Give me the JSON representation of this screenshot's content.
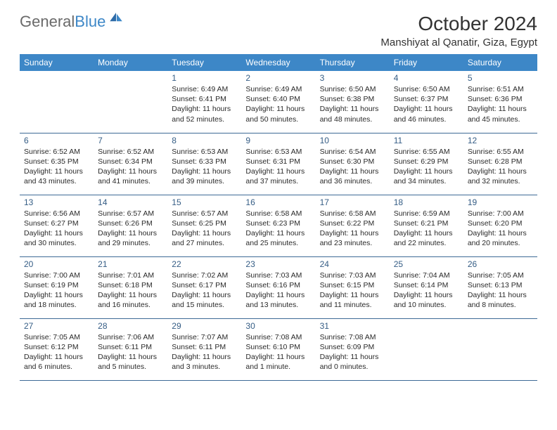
{
  "header": {
    "logo_general": "General",
    "logo_blue": "Blue",
    "title": "October 2024",
    "location": "Manshiyat al Qanatir, Giza, Egypt"
  },
  "colors": {
    "header_bg": "#3d87c7",
    "header_text": "#ffffff",
    "daynum": "#355d85",
    "row_border": "#3d6a96",
    "body_text": "#2a2a2a"
  },
  "day_names": [
    "Sunday",
    "Monday",
    "Tuesday",
    "Wednesday",
    "Thursday",
    "Friday",
    "Saturday"
  ],
  "weeks": [
    [
      null,
      null,
      {
        "n": "1",
        "sr": "Sunrise: 6:49 AM",
        "ss": "Sunset: 6:41 PM",
        "d1": "Daylight: 11 hours",
        "d2": "and 52 minutes."
      },
      {
        "n": "2",
        "sr": "Sunrise: 6:49 AM",
        "ss": "Sunset: 6:40 PM",
        "d1": "Daylight: 11 hours",
        "d2": "and 50 minutes."
      },
      {
        "n": "3",
        "sr": "Sunrise: 6:50 AM",
        "ss": "Sunset: 6:38 PM",
        "d1": "Daylight: 11 hours",
        "d2": "and 48 minutes."
      },
      {
        "n": "4",
        "sr": "Sunrise: 6:50 AM",
        "ss": "Sunset: 6:37 PM",
        "d1": "Daylight: 11 hours",
        "d2": "and 46 minutes."
      },
      {
        "n": "5",
        "sr": "Sunrise: 6:51 AM",
        "ss": "Sunset: 6:36 PM",
        "d1": "Daylight: 11 hours",
        "d2": "and 45 minutes."
      }
    ],
    [
      {
        "n": "6",
        "sr": "Sunrise: 6:52 AM",
        "ss": "Sunset: 6:35 PM",
        "d1": "Daylight: 11 hours",
        "d2": "and 43 minutes."
      },
      {
        "n": "7",
        "sr": "Sunrise: 6:52 AM",
        "ss": "Sunset: 6:34 PM",
        "d1": "Daylight: 11 hours",
        "d2": "and 41 minutes."
      },
      {
        "n": "8",
        "sr": "Sunrise: 6:53 AM",
        "ss": "Sunset: 6:33 PM",
        "d1": "Daylight: 11 hours",
        "d2": "and 39 minutes."
      },
      {
        "n": "9",
        "sr": "Sunrise: 6:53 AM",
        "ss": "Sunset: 6:31 PM",
        "d1": "Daylight: 11 hours",
        "d2": "and 37 minutes."
      },
      {
        "n": "10",
        "sr": "Sunrise: 6:54 AM",
        "ss": "Sunset: 6:30 PM",
        "d1": "Daylight: 11 hours",
        "d2": "and 36 minutes."
      },
      {
        "n": "11",
        "sr": "Sunrise: 6:55 AM",
        "ss": "Sunset: 6:29 PM",
        "d1": "Daylight: 11 hours",
        "d2": "and 34 minutes."
      },
      {
        "n": "12",
        "sr": "Sunrise: 6:55 AM",
        "ss": "Sunset: 6:28 PM",
        "d1": "Daylight: 11 hours",
        "d2": "and 32 minutes."
      }
    ],
    [
      {
        "n": "13",
        "sr": "Sunrise: 6:56 AM",
        "ss": "Sunset: 6:27 PM",
        "d1": "Daylight: 11 hours",
        "d2": "and 30 minutes."
      },
      {
        "n": "14",
        "sr": "Sunrise: 6:57 AM",
        "ss": "Sunset: 6:26 PM",
        "d1": "Daylight: 11 hours",
        "d2": "and 29 minutes."
      },
      {
        "n": "15",
        "sr": "Sunrise: 6:57 AM",
        "ss": "Sunset: 6:25 PM",
        "d1": "Daylight: 11 hours",
        "d2": "and 27 minutes."
      },
      {
        "n": "16",
        "sr": "Sunrise: 6:58 AM",
        "ss": "Sunset: 6:23 PM",
        "d1": "Daylight: 11 hours",
        "d2": "and 25 minutes."
      },
      {
        "n": "17",
        "sr": "Sunrise: 6:58 AM",
        "ss": "Sunset: 6:22 PM",
        "d1": "Daylight: 11 hours",
        "d2": "and 23 minutes."
      },
      {
        "n": "18",
        "sr": "Sunrise: 6:59 AM",
        "ss": "Sunset: 6:21 PM",
        "d1": "Daylight: 11 hours",
        "d2": "and 22 minutes."
      },
      {
        "n": "19",
        "sr": "Sunrise: 7:00 AM",
        "ss": "Sunset: 6:20 PM",
        "d1": "Daylight: 11 hours",
        "d2": "and 20 minutes."
      }
    ],
    [
      {
        "n": "20",
        "sr": "Sunrise: 7:00 AM",
        "ss": "Sunset: 6:19 PM",
        "d1": "Daylight: 11 hours",
        "d2": "and 18 minutes."
      },
      {
        "n": "21",
        "sr": "Sunrise: 7:01 AM",
        "ss": "Sunset: 6:18 PM",
        "d1": "Daylight: 11 hours",
        "d2": "and 16 minutes."
      },
      {
        "n": "22",
        "sr": "Sunrise: 7:02 AM",
        "ss": "Sunset: 6:17 PM",
        "d1": "Daylight: 11 hours",
        "d2": "and 15 minutes."
      },
      {
        "n": "23",
        "sr": "Sunrise: 7:03 AM",
        "ss": "Sunset: 6:16 PM",
        "d1": "Daylight: 11 hours",
        "d2": "and 13 minutes."
      },
      {
        "n": "24",
        "sr": "Sunrise: 7:03 AM",
        "ss": "Sunset: 6:15 PM",
        "d1": "Daylight: 11 hours",
        "d2": "and 11 minutes."
      },
      {
        "n": "25",
        "sr": "Sunrise: 7:04 AM",
        "ss": "Sunset: 6:14 PM",
        "d1": "Daylight: 11 hours",
        "d2": "and 10 minutes."
      },
      {
        "n": "26",
        "sr": "Sunrise: 7:05 AM",
        "ss": "Sunset: 6:13 PM",
        "d1": "Daylight: 11 hours",
        "d2": "and 8 minutes."
      }
    ],
    [
      {
        "n": "27",
        "sr": "Sunrise: 7:05 AM",
        "ss": "Sunset: 6:12 PM",
        "d1": "Daylight: 11 hours",
        "d2": "and 6 minutes."
      },
      {
        "n": "28",
        "sr": "Sunrise: 7:06 AM",
        "ss": "Sunset: 6:11 PM",
        "d1": "Daylight: 11 hours",
        "d2": "and 5 minutes."
      },
      {
        "n": "29",
        "sr": "Sunrise: 7:07 AM",
        "ss": "Sunset: 6:11 PM",
        "d1": "Daylight: 11 hours",
        "d2": "and 3 minutes."
      },
      {
        "n": "30",
        "sr": "Sunrise: 7:08 AM",
        "ss": "Sunset: 6:10 PM",
        "d1": "Daylight: 11 hours",
        "d2": "and 1 minute."
      },
      {
        "n": "31",
        "sr": "Sunrise: 7:08 AM",
        "ss": "Sunset: 6:09 PM",
        "d1": "Daylight: 11 hours",
        "d2": "and 0 minutes."
      },
      null,
      null
    ]
  ]
}
